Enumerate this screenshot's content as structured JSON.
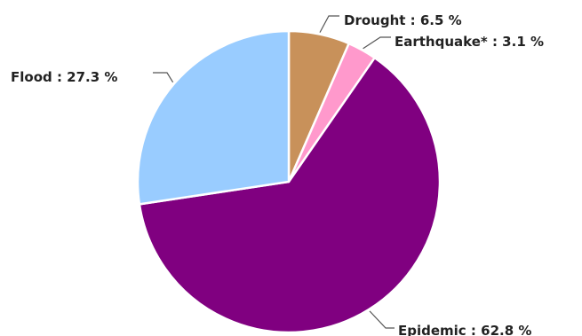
{
  "chart_data": {
    "type": "pie",
    "title": "",
    "slices": [
      {
        "label": "Drought",
        "value": 6.5,
        "text": "Drought : 6.5 %",
        "color": "#C8915A"
      },
      {
        "label": "Earthquake*",
        "value": 3.1,
        "text": "Earthquake* : 3.1 %",
        "color": "#FF99CC"
      },
      {
        "label": "Epidemic",
        "value": 62.8,
        "text": "Epidemic : 62.8 %",
        "color": "#800080"
      },
      {
        "label": "Flood",
        "value": 27.3,
        "text": "Flood : 27.3 %",
        "color": "#99CCFF"
      }
    ],
    "start_angle": "12 o'clock",
    "direction": "clockwise",
    "label_format": "name : percent %"
  }
}
